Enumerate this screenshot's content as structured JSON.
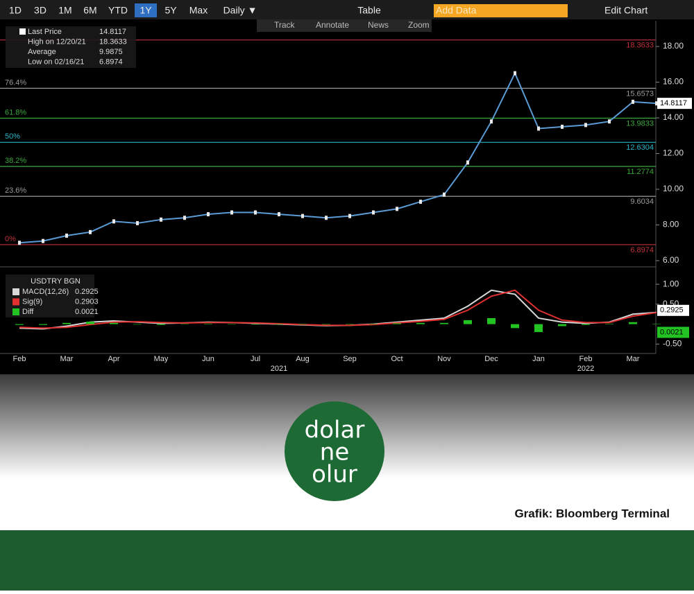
{
  "toolbar": {
    "buttons": [
      "1D",
      "3D",
      "1M",
      "6M",
      "YTD",
      "1Y",
      "5Y",
      "Max",
      "Daily ▼"
    ],
    "active": "1Y",
    "table": "Table",
    "add_data": "Add Data",
    "edit_chart": "Edit Chart",
    "tools": [
      "Track",
      "Annotate",
      "News",
      "Zoom"
    ]
  },
  "chart_data": [
    {
      "type": "line",
      "categories": [
        "Feb",
        null,
        "Mar",
        null,
        "Apr",
        null,
        "May",
        null,
        "Jun",
        null,
        "Jul",
        null,
        "Aug",
        null,
        "Sep",
        null,
        "Oct",
        null,
        "Nov",
        null,
        "Dec",
        null,
        "Jan",
        null,
        "Feb",
        null,
        "Mar",
        null
      ],
      "years": [
        {
          "index": 11,
          "label": "2021"
        },
        {
          "index": 24,
          "label": "2022"
        }
      ],
      "series": [
        {
          "name": "Last Price",
          "color": "#5b9bd5",
          "values": [
            7.0,
            7.1,
            7.4,
            7.6,
            8.2,
            8.1,
            8.3,
            8.4,
            8.6,
            8.7,
            8.7,
            8.6,
            8.5,
            8.4,
            8.5,
            8.7,
            8.9,
            9.3,
            9.7,
            11.5,
            13.8,
            16.5,
            13.4,
            13.5,
            13.6,
            13.8,
            14.9,
            14.8117
          ]
        }
      ],
      "stats": [
        {
          "label": "Last Price",
          "value": 14.8117
        },
        {
          "label": "High on 12/20/21",
          "value": 18.3633
        },
        {
          "label": "Average",
          "value": 9.9875
        },
        {
          "label": "Low on 02/16/21",
          "value": 6.8974
        }
      ],
      "last_value": 14.8117,
      "levels": [
        {
          "label": null,
          "value": 18.3633,
          "color": "#c0303a"
        },
        {
          "label": "76.4%",
          "value": 15.6573,
          "color": "#9a9a9a"
        },
        {
          "label": "61.8%",
          "value": 13.9833,
          "color": "#3aa83a"
        },
        {
          "label": "50%",
          "value": 12.6304,
          "color": "#2bb5c8"
        },
        {
          "label": "38.2%",
          "value": 11.2774,
          "color": "#3aa83a"
        },
        {
          "label": "23.6%",
          "value": 9.6034,
          "color": "#9a9a9a"
        },
        {
          "label": "0%",
          "value": 6.8974,
          "color": "#c0303a"
        }
      ],
      "ylim": [
        5.73,
        19.05
      ],
      "yticks": [
        {
          "value": 6,
          "label": "6.00"
        },
        {
          "value": 8,
          "label": "8.00"
        },
        {
          "value": 10,
          "label": "10.00"
        },
        {
          "value": 12,
          "label": "12.00"
        },
        {
          "value": 14,
          "label": "14.00"
        },
        {
          "value": 16,
          "label": "16.00"
        },
        {
          "value": 18,
          "label": "18.00"
        }
      ]
    },
    {
      "type": "line",
      "title": "USDTRY BGN",
      "series": [
        {
          "name": "MACD(12,26)",
          "color": "#d8d8d8",
          "last": 0.2925,
          "values": [
            -0.1,
            -0.12,
            -0.05,
            0.05,
            0.08,
            0.05,
            0.02,
            0.03,
            0.05,
            0.04,
            0.02,
            0.0,
            -0.02,
            -0.04,
            -0.03,
            0.0,
            0.05,
            0.1,
            0.15,
            0.45,
            0.85,
            0.75,
            0.15,
            0.05,
            0.02,
            0.05,
            0.25,
            0.2925
          ]
        },
        {
          "name": "Sig(9)",
          "color": "#e03030",
          "last": 0.2903,
          "values": [
            -0.08,
            -0.1,
            -0.08,
            -0.01,
            0.05,
            0.06,
            0.04,
            0.03,
            0.04,
            0.04,
            0.03,
            0.01,
            -0.01,
            -0.03,
            -0.03,
            -0.01,
            0.03,
            0.07,
            0.12,
            0.35,
            0.7,
            0.85,
            0.35,
            0.1,
            0.04,
            0.04,
            0.2,
            0.2903
          ]
        },
        {
          "name": "Diff",
          "color": "#22c322",
          "style": "bar",
          "last": 0.0021,
          "values": [
            -0.02,
            -0.02,
            0.03,
            0.06,
            0.03,
            -0.01,
            -0.02,
            0,
            0.01,
            0,
            -0.01,
            -0.01,
            -0.01,
            -0.01,
            0,
            0.01,
            0.02,
            0.03,
            0.03,
            0.1,
            0.15,
            -0.1,
            -0.2,
            -0.05,
            -0.02,
            0.01,
            0.05,
            0.0021
          ]
        }
      ],
      "ylim": [
        -0.65,
        1.35
      ],
      "yticks": [
        {
          "value": 1,
          "label": "1.00"
        },
        {
          "value": 0.5,
          "label": "0.50"
        },
        {
          "value": -0.5,
          "label": "-0.50"
        }
      ]
    }
  ],
  "logo": [
    "dolar",
    "ne",
    "olur"
  ],
  "caption": "Grafik: Bloomberg Terminal"
}
